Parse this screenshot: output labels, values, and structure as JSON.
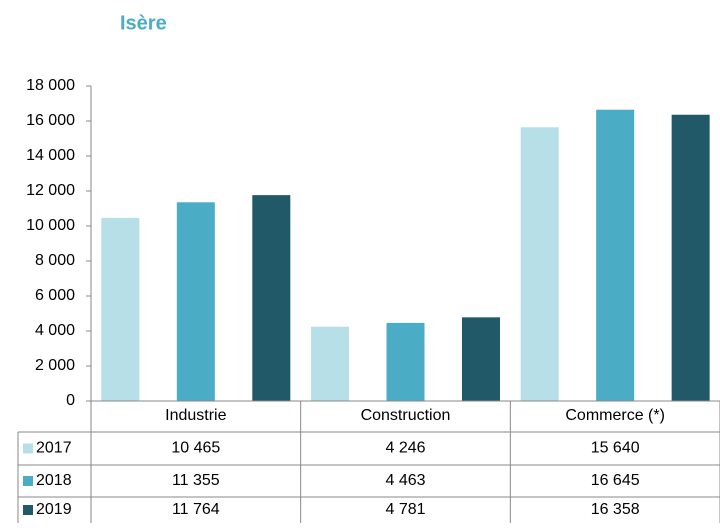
{
  "chart_data": {
    "type": "bar",
    "title": "Isère",
    "categories": [
      "Industrie",
      "Construction",
      "Commerce (*)"
    ],
    "series": [
      {
        "name": "2017",
        "color": "#b7dfe8",
        "values": [
          10465,
          4246,
          15640
        ],
        "value_labels": [
          "10 465",
          "4 246",
          "15 640"
        ]
      },
      {
        "name": "2018",
        "color": "#4bacc6",
        "values": [
          11355,
          4463,
          16645
        ],
        "value_labels": [
          "11 355",
          "4 463",
          "16 645"
        ]
      },
      {
        "name": "2019",
        "color": "#215968",
        "values": [
          11764,
          4781,
          16358
        ],
        "value_labels": [
          "11 764",
          "4 781",
          "16 358"
        ]
      }
    ],
    "ylim": [
      0,
      18000
    ],
    "yticks": [
      0,
      {
        "value": 2000,
        "label": "2 000"
      },
      {
        "value": 4000,
        "label": "4 000"
      },
      {
        "value": 6000,
        "label": "6 000"
      },
      {
        "value": 8000,
        "label": "8 000"
      },
      {
        "value": 10000,
        "label": "10 000"
      },
      {
        "value": 12000,
        "label": "12 000"
      },
      {
        "value": 14000,
        "label": "14 000"
      },
      {
        "value": 16000,
        "label": "16 000"
      },
      {
        "value": 18000,
        "label": "18 000"
      }
    ],
    "grid": false
  }
}
